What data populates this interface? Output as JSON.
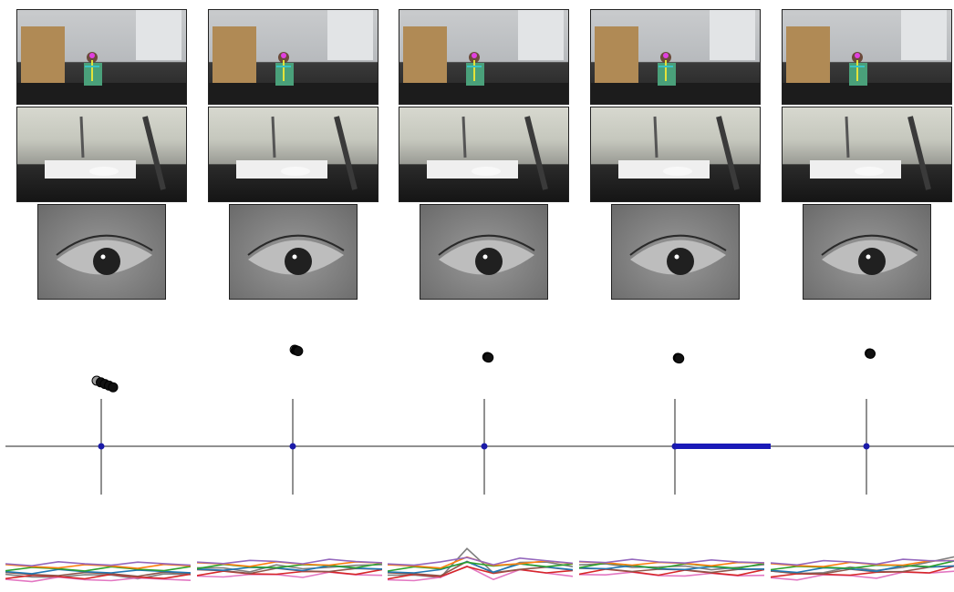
{
  "panels": [
    {
      "id": 1,
      "gaze_spread": 0.18,
      "activity": [
        0.32,
        0.3,
        0.34,
        0.31,
        0.35,
        0.3,
        0.33,
        0.36
      ]
    },
    {
      "id": 2,
      "gaze_spread": 0.05,
      "activity": [
        0.48,
        0.52,
        0.47,
        0.55,
        0.5,
        0.58,
        0.54,
        0.6
      ]
    },
    {
      "id": 3,
      "gaze_spread": 0.03,
      "activity": [
        0.3,
        0.35,
        0.33,
        0.95,
        0.4,
        0.7,
        0.62,
        0.55
      ]
    },
    {
      "id": 4,
      "gaze_spread": 0.03,
      "activity": [
        0.55,
        0.62,
        0.58,
        0.5,
        0.57,
        0.52,
        0.49,
        0.6
      ]
    },
    {
      "id": 5,
      "gaze_spread": 0.02,
      "activity": [
        0.4,
        0.38,
        0.45,
        0.5,
        0.46,
        0.58,
        0.62,
        0.8
      ]
    }
  ],
  "colors": {
    "axis": "#222222",
    "origin_marker": "#1a1aa8",
    "highlight_bar": "#1a1ab8",
    "series": [
      "#7f7f7f",
      "#e377c2",
      "#d62728",
      "#8c564b",
      "#1f77b4",
      "#2ca02c",
      "#ff7f0e",
      "#9467bd"
    ]
  }
}
